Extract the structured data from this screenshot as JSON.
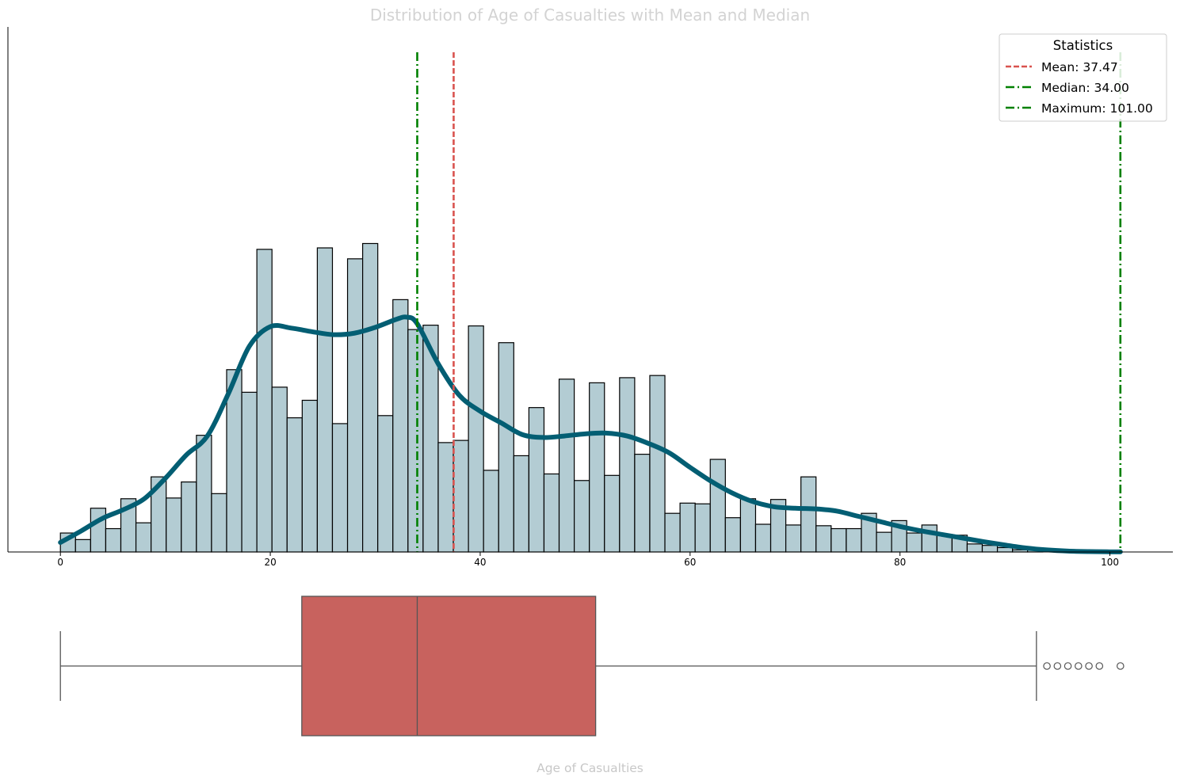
{
  "chart_data": {
    "type": "histogram",
    "title": "Distribution of Age of Casualties with Mean and Median",
    "xlabel": "Age of Casualties",
    "ylabel": "",
    "xlim": [
      -5,
      106
    ],
    "xticks": [
      0,
      20,
      40,
      60,
      80,
      100
    ],
    "ylim": [
      0,
      72
    ],
    "bin_width": 1.44,
    "bin_start": 0,
    "counts": [
      2.6,
      1.7,
      6,
      3.2,
      7.3,
      4,
      10.3,
      7.4,
      9.6,
      16,
      8,
      25,
      21.9,
      41.5,
      22.6,
      18.4,
      20.8,
      41.7,
      17.6,
      40.2,
      42.3,
      18.7,
      34.6,
      30.5,
      31.1,
      15,
      15.3,
      31,
      11.2,
      28.7,
      13.2,
      19.8,
      10.7,
      23.7,
      9.8,
      23.2,
      10.5,
      23.9,
      13.4,
      24.2,
      5.3,
      6.7,
      6.6,
      12.7,
      4.7,
      7.3,
      3.8,
      7.2,
      3.7,
      10.3,
      3.6,
      3.2,
      3.2,
      5.3,
      2.7,
      4.3,
      2.6,
      3.7,
      2.4,
      2.3,
      1.1,
      0.9,
      0.6,
      0.3,
      0.4
    ],
    "kde": {
      "x": [
        0,
        2,
        4,
        6,
        8,
        10,
        12,
        14,
        16,
        18,
        20,
        22,
        24,
        26,
        28,
        30,
        32,
        33,
        34,
        36,
        38,
        40,
        42,
        44,
        46,
        48,
        50,
        52,
        54,
        56,
        58,
        60,
        62,
        64,
        66,
        68,
        70,
        72,
        74,
        76,
        78,
        80,
        82,
        84,
        86,
        88,
        90,
        92,
        94,
        96,
        98,
        100,
        101
      ],
      "y": [
        1.3,
        2.9,
        4.6,
        5.8,
        7.3,
        10.1,
        13.3,
        15.9,
        21.7,
        28.2,
        30.9,
        30.7,
        30.2,
        29.8,
        30,
        30.8,
        31.9,
        32.2,
        31.3,
        25.8,
        21.5,
        19.3,
        17.7,
        16.1,
        15.7,
        15.9,
        16.2,
        16.3,
        15.9,
        14.9,
        13.6,
        11.6,
        9.7,
        8.1,
        6.9,
        6.2,
        6,
        5.9,
        5.6,
        4.9,
        4.2,
        3.5,
        2.9,
        2.4,
        1.9,
        1.4,
        0.95,
        0.55,
        0.28,
        0.12,
        0.05,
        0.02,
        0.01
      ]
    },
    "reference_lines": [
      {
        "label": "Mean: 37.47",
        "value": 37.47,
        "color": "#d9534f",
        "style": "dashed"
      },
      {
        "label": "Median: 34.00",
        "value": 34.0,
        "color": "#008000",
        "style": "dashdot"
      },
      {
        "label": "Maximum: 101.00",
        "value": 101.0,
        "color": "#008000",
        "style": "dashdot"
      }
    ],
    "legend": {
      "title": "Statistics",
      "placement": "top-right"
    },
    "boxplot": {
      "min": 0,
      "q1": 23,
      "median": 34,
      "q3": 51,
      "whisker_high": 93,
      "outliers": [
        94,
        95,
        96,
        97,
        98,
        99,
        101
      ],
      "color": "#c8625e"
    },
    "colors": {
      "hist_fill": "#b3ccd3",
      "hist_edge": "#000000",
      "kde_line": "#035e73"
    }
  }
}
